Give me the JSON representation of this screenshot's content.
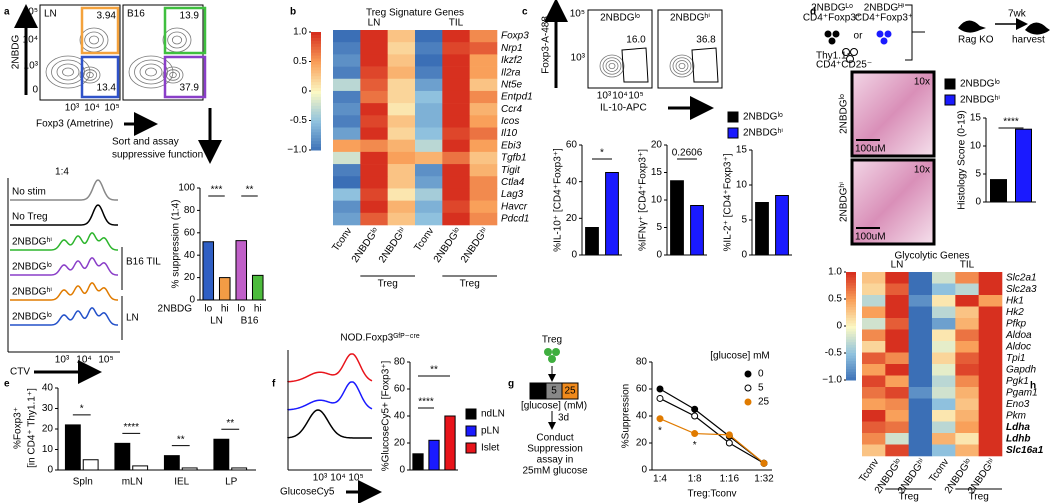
{
  "figure": {
    "panel_labels": [
      "a",
      "b",
      "c",
      "d",
      "e",
      "f",
      "g",
      "h"
    ],
    "a": {
      "flow_y_label": "2NBDG",
      "flow_x_label": "Foxp3 (Ametrine)",
      "flow_x_ticks": [
        "10³",
        "10⁴",
        "10⁵"
      ],
      "flow_y_ticks": [
        "10⁵",
        "10⁴",
        "10³",
        "0"
      ],
      "flow_plots": [
        {
          "title": "LN",
          "gates": [
            "3.94",
            "13.4"
          ],
          "gate_colors": [
            "#f4a23c",
            "#2f52c9"
          ]
        },
        {
          "title": "B16",
          "gates": [
            "13.9",
            "37.9"
          ],
          "gate_colors": [
            "#3fbf3f",
            "#8a3fc8"
          ]
        }
      ],
      "sort_text": [
        "Sort and assay",
        "suppressive function"
      ],
      "hist_ratio": "1:4",
      "hist_rows": [
        "No stim",
        "No Treg",
        "2NBDGʰⁱ",
        "2NBDGˡᵒ",
        "2NBDGʰⁱ",
        "2NBDGˡᵒ"
      ],
      "hist_colors": [
        "#888888",
        "#000000",
        "#2db52d",
        "#8a3fc8",
        "#e07b00",
        "#2451c9"
      ],
      "hist_groups": [
        "B16 TIL",
        "LN"
      ],
      "hist_x_label": "CTV",
      "hist_x_ticks": [
        "10³",
        "10⁴",
        "10⁵"
      ],
      "bar": {
        "y_label": "% suppression (1:4)",
        "ylim": [
          0,
          100
        ],
        "yticks": [
          0,
          20,
          40,
          60,
          80,
          100
        ],
        "categories": [
          "lo",
          "hi",
          "lo",
          "hi"
        ],
        "group_title": "2NBDG",
        "groups": [
          "LN",
          "B16"
        ],
        "values": [
          52,
          20,
          53,
          22
        ],
        "colors": [
          "#2f5fc4",
          "#f39c45",
          "#c060c8",
          "#4cbb3c"
        ],
        "significance": [
          "***",
          "**"
        ]
      }
    },
    "b": {
      "title": "Treg Signature Genes",
      "groups": [
        "LN",
        "TIL"
      ],
      "columns": [
        "Tconv",
        "2NBDGˡᵒ",
        "2NBDGʰⁱ",
        "Tconv",
        "2NBDGˡᵒ",
        "2NBDGʰⁱ"
      ],
      "subgroup_labels": [
        "Treg",
        "Treg"
      ],
      "colorbar_ticks": [
        {
          "value": 1,
          "label": "1.0"
        },
        0.5,
        0,
        -0.5,
        {
          "value": -1,
          "label": "−1.0"
        }
      ],
      "rows": [
        "Foxp3",
        "Nrp1",
        "Ikzf2",
        "Il2ra",
        "Nt5e",
        "Entpd1",
        "Ccr4",
        "Icos",
        "Il10",
        "Ebi3",
        "Tgfb1",
        "Tigit",
        "Ctla4",
        "Lag3",
        "Havcr",
        "Pdcd1"
      ],
      "values": [
        [
          -1,
          1,
          0.3,
          -1,
          1,
          0.6
        ],
        [
          -0.9,
          1,
          0.2,
          -0.9,
          0.9,
          0.8
        ],
        [
          -0.8,
          1,
          0.3,
          -1,
          1,
          0.5
        ],
        [
          -0.9,
          0.9,
          0.4,
          -0.9,
          1,
          0.5
        ],
        [
          -0.3,
          0.8,
          0.2,
          -0.7,
          1,
          0.3
        ],
        [
          -0.9,
          0.7,
          0.2,
          -0.5,
          1,
          0.6
        ],
        [
          -0.8,
          1,
          0.1,
          -0.6,
          1,
          0.4
        ],
        [
          -0.9,
          0.9,
          0.3,
          -0.6,
          1,
          0.5
        ],
        [
          -0.7,
          1,
          0.2,
          -0.5,
          0.9,
          0.7
        ],
        [
          0.5,
          0.6,
          0.4,
          -0.3,
          1,
          0.5
        ],
        [
          -0.2,
          1,
          0.5,
          0.4,
          0.7,
          0.3
        ],
        [
          -0.9,
          1,
          0.3,
          -0.8,
          1,
          0.4
        ],
        [
          -1,
          1,
          0.3,
          -0.7,
          1,
          0.6
        ],
        [
          -0.5,
          0.9,
          0.1,
          -0.4,
          1,
          0.6
        ],
        [
          -0.8,
          1,
          0.4,
          -0.6,
          0.9,
          0.5
        ],
        [
          -0.7,
          0.8,
          0.3,
          -0.5,
          1,
          0.6
        ]
      ]
    },
    "c": {
      "flow_y_label": "Foxp3-A-488",
      "flow_x_label": "IL-10-APC",
      "flow_x_ticks": [
        "10³",
        "10⁴",
        "10⁵"
      ],
      "flow_y_ticks": [
        "10⁵",
        "10³"
      ],
      "flow_plots": [
        {
          "title": "2NBDGˡᵒ",
          "gate": "16.0"
        },
        {
          "title": "2NBDGʰⁱ",
          "gate": "36.8"
        }
      ],
      "legend": [
        {
          "name": "2NBDGˡᵒ",
          "color": "#000000"
        },
        {
          "name": "2NBDGʰⁱ",
          "color": "#1a1aff"
        }
      ],
      "bars": [
        {
          "y_label": "%IL-10⁺ [CD4⁺Foxp3⁺]",
          "ylim": [
            0,
            60
          ],
          "yticks": [
            0,
            20,
            40,
            60
          ],
          "values": [
            15,
            45
          ],
          "colors": [
            "#000000",
            "#1a1aff"
          ],
          "significance": [
            "*"
          ]
        },
        {
          "y_label": "%IFNγ⁺ [CD4⁺Foxp3⁺]",
          "ylim": [
            0,
            20
          ],
          "yticks": [
            0,
            5,
            10,
            15,
            20
          ],
          "values": [
            13.5,
            9
          ],
          "colors": [
            "#000000",
            "#1a1aff"
          ],
          "significance": [
            "0.2606"
          ]
        },
        {
          "y_label": "%IL-2⁺ [CD4⁺Foxp3⁺]",
          "ylim": [
            0,
            15
          ],
          "yticks": [
            0,
            5,
            10,
            15
          ],
          "values": [
            7.5,
            8.5
          ],
          "colors": [
            "#000000",
            "#1a1aff"
          ],
          "significance": []
        }
      ]
    },
    "d": {
      "schematic": {
        "cell_lo": [
          "2NBDGᴸᵒ",
          "CD4⁺Foxp3⁺"
        ],
        "or": "or",
        "cell_hi": [
          "2NBDGᴴⁱ",
          "CD4⁺Foxp3⁺"
        ],
        "tconv": [
          "Thy1.1⁺",
          "CD4⁺CD25⁻"
        ],
        "time": "7wk",
        "host": "Rag KO",
        "end": "harvest"
      },
      "images": [
        {
          "label": "2NBDGˡᵒ",
          "magnification": "10x",
          "scale": "100uM"
        },
        {
          "label": "2NBDGʰⁱ",
          "magnification": "10x",
          "scale": "100uM"
        }
      ],
      "legend": [
        {
          "name": "2NBDGˡᵒ",
          "color": "#000000"
        },
        {
          "name": "2NBDGʰⁱ",
          "color": "#1a1aff"
        }
      ],
      "bar": {
        "y_label": "Histology Score (0-19)",
        "ylim": [
          0,
          15
        ],
        "yticks": [
          0,
          5,
          10,
          15
        ],
        "values": [
          4,
          13
        ],
        "colors": [
          "#000000",
          "#1a1aff"
        ],
        "significance": [
          "****"
        ]
      }
    },
    "e": {
      "y_label": [
        "%Foxp3⁺",
        "[in CD4⁺ Thy1.1⁺]"
      ],
      "ylim": [
        0,
        40
      ],
      "yticks": [
        0,
        10,
        20,
        30,
        40
      ],
      "categories": [
        "Spln",
        "mLN",
        "IEL",
        "LP"
      ],
      "series": [
        {
          "color": "#000000",
          "values": [
            22,
            13,
            7,
            15
          ]
        },
        {
          "color": "#ffffff",
          "values": [
            5,
            2,
            1,
            1
          ]
        }
      ],
      "significance": [
        "*",
        "****",
        "**",
        "**"
      ]
    },
    "f": {
      "title": "NOD.Foxp3ᴳᶠᴾ⁻ᶜʳᵉ",
      "hist_x_label": "GlucoseCy5",
      "hist_x_ticks": [
        "10³",
        "10⁴",
        "10⁵"
      ],
      "hist_colors": [
        "#e8141b",
        "#1a1aff",
        "#000000"
      ],
      "legend": [
        {
          "name": "ndLN",
          "color": "#000000"
        },
        {
          "name": "pLN",
          "color": "#1a1aff"
        },
        {
          "name": "Islet",
          "color": "#e8141b"
        }
      ],
      "bar": {
        "y_label": "%GlucoseCy5+ [Foxp3⁺]",
        "ylim": [
          0,
          80
        ],
        "yticks": [
          0,
          20,
          40,
          60,
          80
        ],
        "values": [
          12,
          22,
          40
        ],
        "colors": [
          "#000000",
          "#1a1aff",
          "#e8141b"
        ],
        "significance": [
          "****",
          "**"
        ]
      }
    },
    "g": {
      "schematic": {
        "cell": "Treg",
        "glucose": [
          "0",
          "5",
          "25"
        ],
        "glucose_colors": [
          "#000000",
          "#888888",
          "#f08a1c"
        ],
        "glucose_label": "[glucose] (mM)",
        "time": "3d",
        "assay": [
          "Conduct",
          "Suppression",
          "assay in",
          "25mM glucose"
        ]
      },
      "chart": {
        "type": "line",
        "y_label": "%Suppression",
        "x_label": "Treg:Tconv",
        "legend_title": "[glucose] mM",
        "categories": [
          "1:4",
          "1:8",
          "1:16",
          "1:32"
        ],
        "ylim": [
          0,
          80
        ],
        "yticks": [
          0,
          20,
          40,
          60,
          80
        ],
        "series": [
          {
            "name": "0",
            "color": "#000000",
            "values": [
              60,
              45,
              25,
              5
            ]
          },
          {
            "name": "5",
            "color": "#ffffff",
            "values": [
              53,
              40,
              20,
              5
            ]
          },
          {
            "name": "25",
            "color": "#e07b00",
            "values": [
              38,
              27,
              26,
              5
            ]
          }
        ],
        "significance": [
          "*",
          "*"
        ]
      }
    },
    "h": {
      "title": "Glycolytic Genes",
      "groups": [
        "LN",
        "TIL"
      ],
      "columns": [
        "Tconv",
        "2NBDGˡᵒ",
        "2NBDGʰⁱ",
        "Tconv",
        "2NBDGˡᵒ",
        "2NBDGʰⁱ"
      ],
      "subgroup_labels": [
        "Treg",
        "Treg"
      ],
      "colorbar_ticks": [
        {
          "value": 1,
          "label": "1.0"
        },
        0.5,
        0,
        -0.5,
        {
          "value": -1,
          "label": "−1.0"
        }
      ],
      "rows": [
        "Slc2a1",
        "Slc2a3",
        "Hk1",
        "Hk2",
        "Pfkp",
        "Aldoa",
        "Aldoc",
        "Tpi1",
        "Gapdh",
        "Pgk1",
        "Pgam1",
        "Eno3",
        "Pkm",
        "Ldha",
        "Ldhb",
        "Slc16a1"
      ],
      "row_colors": [
        "#000",
        "#000",
        "#000",
        "#000",
        "#000",
        "#000",
        "#000",
        "#000",
        "#000",
        "#000",
        "#000",
        "#000",
        "#000",
        "#e0201b",
        "#e0201b",
        "#e0201b"
      ],
      "values": [
        [
          0.3,
          1,
          -1,
          -0.2,
          0.6,
          1
        ],
        [
          0.2,
          0.8,
          -1,
          -0.5,
          -0.3,
          1
        ],
        [
          -0.3,
          1,
          -0.8,
          0.1,
          1,
          0.5
        ],
        [
          0.5,
          1,
          -1,
          -0.3,
          0.3,
          1
        ],
        [
          -0.2,
          0.8,
          -1,
          -0.7,
          0.4,
          1
        ],
        [
          0.6,
          1,
          -1,
          0.1,
          0.7,
          1
        ],
        [
          0.2,
          1,
          -1,
          -0.1,
          0.5,
          1
        ],
        [
          0.8,
          0.6,
          -1,
          0.2,
          0.8,
          1
        ],
        [
          0.5,
          1,
          -1,
          -0.1,
          0.9,
          1
        ],
        [
          0.9,
          0.5,
          -1,
          -0.3,
          0.6,
          1
        ],
        [
          0.7,
          0.9,
          -0.8,
          -0.2,
          0.4,
          1
        ],
        [
          0.5,
          0.6,
          -1,
          -0.5,
          0.3,
          1
        ],
        [
          1,
          0.5,
          -1,
          0.1,
          0.4,
          1
        ],
        [
          0.8,
          0.7,
          -1,
          -0.3,
          0.5,
          1
        ],
        [
          0.6,
          -0.2,
          -1,
          0.4,
          0.1,
          1
        ],
        [
          0.3,
          0.9,
          -1,
          -0.5,
          0.4,
          1
        ]
      ]
    }
  }
}
